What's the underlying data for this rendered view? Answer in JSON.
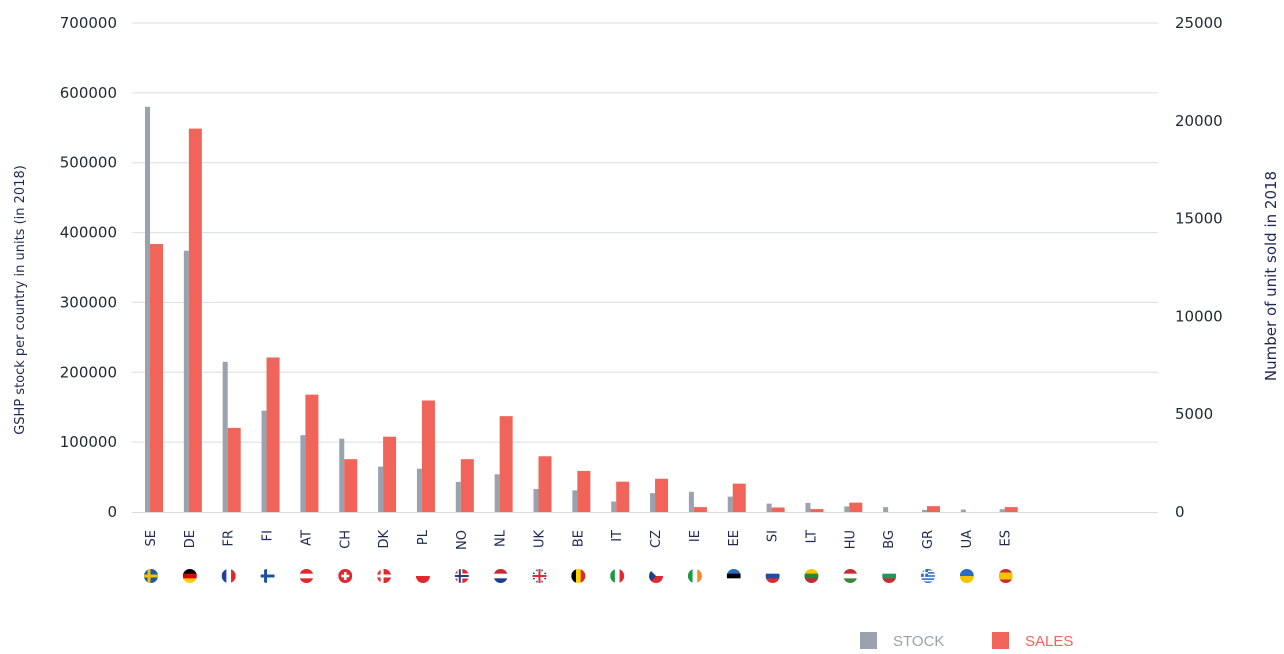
{
  "chart_data": {
    "type": "bar",
    "categories": [
      "SE",
      "DE",
      "FR",
      "FI",
      "AT",
      "CH",
      "DK",
      "PL",
      "NO",
      "NL",
      "UK",
      "BE",
      "IT",
      "CZ",
      "IE",
      "EE",
      "SI",
      "LT",
      "HU",
      "BG",
      "GR",
      "UA",
      "ES"
    ],
    "series": [
      {
        "name": "STOCK",
        "axis": "left",
        "color": "#9aa3ad",
        "values": [
          580000,
          374000,
          215000,
          145000,
          110000,
          105000,
          65000,
          62000,
          43000,
          54000,
          33000,
          31000,
          15000,
          27000,
          29000,
          22000,
          12000,
          13000,
          8000,
          7000,
          3000,
          3500,
          4000
        ]
      },
      {
        "name": "SALES",
        "axis": "right",
        "color": "#f0645a",
        "values": [
          13700,
          19600,
          4300,
          7900,
          6000,
          2700,
          3850,
          5700,
          2700,
          4900,
          2850,
          2100,
          1550,
          1700,
          250,
          1450,
          230,
          150,
          480,
          0,
          300,
          0,
          250
        ]
      }
    ],
    "yleft": {
      "label": "GSHP stock per country in units (in 2018)",
      "ticks": [
        0,
        100000,
        200000,
        300000,
        400000,
        500000,
        600000,
        700000
      ],
      "ylim": [
        0,
        700000
      ]
    },
    "yright": {
      "label": "Number of unit sold in 2018",
      "ticks": [
        0,
        5000,
        10000,
        15000,
        20000,
        25000
      ],
      "ylim": [
        0,
        25000
      ]
    },
    "grid": true,
    "legend": {
      "placement": "bottom-right",
      "items": [
        "STOCK",
        "SALES"
      ]
    },
    "flags": [
      {
        "code": "SE",
        "colors": [
          "#1a5aa8",
          "#f2c200"
        ],
        "pattern": "nordic"
      },
      {
        "code": "DE",
        "colors": [
          "#000000",
          "#dd0000",
          "#ffce00"
        ],
        "pattern": "h3"
      },
      {
        "code": "FR",
        "colors": [
          "#1f3f9a",
          "#ffffff",
          "#e0282f"
        ],
        "pattern": "v3"
      },
      {
        "code": "FI",
        "colors": [
          "#ffffff",
          "#1e4fa2"
        ],
        "pattern": "nordic"
      },
      {
        "code": "AT",
        "colors": [
          "#e0282f",
          "#ffffff",
          "#e0282f"
        ],
        "pattern": "h3"
      },
      {
        "code": "CH",
        "colors": [
          "#e0282f",
          "#ffffff"
        ],
        "pattern": "cross"
      },
      {
        "code": "DK",
        "colors": [
          "#e0282f",
          "#ffffff"
        ],
        "pattern": "nordic"
      },
      {
        "code": "PL",
        "colors": [
          "#ffffff",
          "#e0282f"
        ],
        "pattern": "h2"
      },
      {
        "code": "NO",
        "colors": [
          "#e0282f",
          "#ffffff",
          "#1e3f8f"
        ],
        "pattern": "nordic2"
      },
      {
        "code": "NL",
        "colors": [
          "#c8282f",
          "#ffffff",
          "#1e3f8f"
        ],
        "pattern": "h3"
      },
      {
        "code": "UK",
        "colors": [
          "#1e3f8f",
          "#ffffff",
          "#e0282f"
        ],
        "pattern": "uk"
      },
      {
        "code": "BE",
        "colors": [
          "#000000",
          "#ffd500",
          "#e0282f"
        ],
        "pattern": "v3"
      },
      {
        "code": "IT",
        "colors": [
          "#1a9a3e",
          "#ffffff",
          "#e0282f"
        ],
        "pattern": "v3"
      },
      {
        "code": "CZ",
        "colors": [
          "#ffffff",
          "#e0282f",
          "#1e3f8f"
        ],
        "pattern": "cz"
      },
      {
        "code": "IE",
        "colors": [
          "#1a9a3e",
          "#ffffff",
          "#f28c28"
        ],
        "pattern": "v3"
      },
      {
        "code": "EE",
        "colors": [
          "#2a6bc7",
          "#000000",
          "#ffffff"
        ],
        "pattern": "h3"
      },
      {
        "code": "SI",
        "colors": [
          "#ffffff",
          "#1e4fa2",
          "#e0282f"
        ],
        "pattern": "h3"
      },
      {
        "code": "LT",
        "colors": [
          "#f5c400",
          "#1a8a3e",
          "#c8282f"
        ],
        "pattern": "h3"
      },
      {
        "code": "HU",
        "colors": [
          "#d0282f",
          "#ffffff",
          "#3a8a3e"
        ],
        "pattern": "h3"
      },
      {
        "code": "BG",
        "colors": [
          "#ffffff",
          "#1a9a5e",
          "#d0282f"
        ],
        "pattern": "h3"
      },
      {
        "code": "GR",
        "colors": [
          "#2a6bc7",
          "#ffffff"
        ],
        "pattern": "gr"
      },
      {
        "code": "UA",
        "colors": [
          "#2a6bc7",
          "#f5c400"
        ],
        "pattern": "h2"
      },
      {
        "code": "ES",
        "colors": [
          "#d0282f",
          "#f5c400",
          "#d0282f"
        ],
        "pattern": "es"
      }
    ]
  }
}
